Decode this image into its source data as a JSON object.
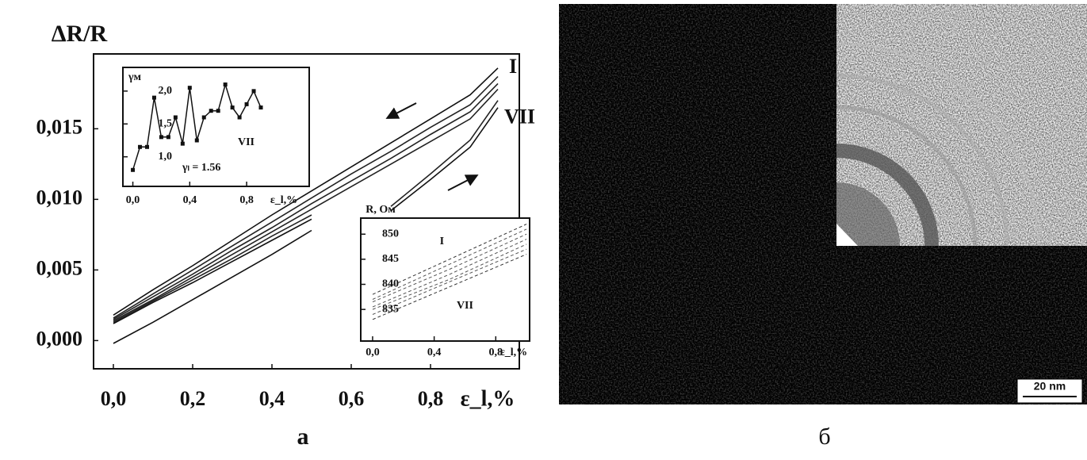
{
  "chart_data": [
    {
      "type": "line",
      "ylabel": "ΔR/R",
      "xlabel": "ε_l,%",
      "caption": "a",
      "x": [
        0,
        0.1,
        0.2,
        0.3,
        0.4,
        0.5,
        0.6,
        0.7,
        0.8,
        0.9,
        0.97
      ],
      "series": [
        {
          "name": "I",
          "color": "#111111",
          "values": [
            0.0018,
            0.0036,
            0.0053,
            0.0071,
            0.0089,
            0.0106,
            0.0123,
            0.014,
            0.0157,
            0.0174,
            0.0193
          ]
        },
        {
          "color": "#222222",
          "values": [
            0.0016,
            0.0033,
            0.005,
            0.0067,
            0.0084,
            0.0101,
            0.0118,
            0.0134,
            0.0151,
            0.0167,
            0.0187
          ]
        },
        {
          "color": "#222222",
          "values": [
            0.0015,
            0.0031,
            0.0047,
            0.0064,
            0.008,
            0.0097,
            0.0113,
            0.0129,
            0.0146,
            0.0162,
            0.0182
          ]
        },
        {
          "color": "#222222",
          "values": [
            0.0014,
            0.0029,
            0.0045,
            0.0061,
            0.0077,
            0.0093,
            0.0109,
            0.0125,
            0.0141,
            0.0157,
            0.0178
          ]
        },
        {
          "color": "#222222",
          "values": [
            0.0013,
            0.0028,
            0.0043,
            0.0058,
            0.0074,
            0.0089,
            null,
            0.0095,
            0.0118,
            0.0142,
            0.017
          ]
        },
        {
          "name": "VII",
          "color": "#111111",
          "values": [
            0.0012,
            0.0027,
            0.0041,
            0.0056,
            0.0071,
            0.0086,
            null,
            0.0092,
            0.0114,
            0.0137,
            0.0165
          ]
        },
        {
          "color": "#111111",
          "values": [
            -0.0002,
            0.0013,
            0.0029,
            0.0045,
            0.0061,
            0.0078,
            null,
            null,
            null,
            null,
            null
          ]
        }
      ],
      "xlim": [
        -0.05,
        1.024
      ],
      "ylim": [
        -0.002,
        0.0203
      ],
      "xticks": [
        {
          "value": 0,
          "label": "0,0"
        },
        {
          "value": 0.2,
          "label": "0,2"
        },
        {
          "value": 0.4,
          "label": "0,4"
        },
        {
          "value": 0.6,
          "label": "0,6"
        },
        {
          "value": 0.8,
          "label": "0,8"
        }
      ],
      "yticks": [
        {
          "value": 0,
          "label": "0,000"
        },
        {
          "value": 0.005,
          "label": "0,005"
        },
        {
          "value": 0.01,
          "label": "0,010"
        },
        {
          "value": 0.015,
          "label": "0,015"
        }
      ]
    },
    {
      "type": "line",
      "ylabel": "γм",
      "xlabel": "ε_l,%",
      "annotations": [
        "VII",
        "γₗ = 1.56"
      ],
      "x": [
        0,
        0.05,
        0.1,
        0.15,
        0.2,
        0.25,
        0.3,
        0.35,
        0.4,
        0.45,
        0.5,
        0.55,
        0.6,
        0.65,
        0.7,
        0.75,
        0.8,
        0.85,
        0.9
      ],
      "series": [
        {
          "color": "#111111",
          "values": [
            0.8,
            1.15,
            1.15,
            1.9,
            1.3,
            1.3,
            1.6,
            1.2,
            2.05,
            1.25,
            1.6,
            1.7,
            1.7,
            2.1,
            1.75,
            1.6,
            1.8,
            2.0,
            1.75
          ]
        }
      ],
      "xlim": [
        -0.07,
        1.24
      ],
      "ylim": [
        0.55,
        2.36
      ],
      "xticks": [
        {
          "value": 0,
          "label": "0,0"
        },
        {
          "value": 0.4,
          "label": "0,4"
        },
        {
          "value": 0.8,
          "label": "0,8"
        }
      ],
      "yticks": [
        {
          "value": 1,
          "label": "1,0"
        },
        {
          "value": 1.5,
          "label": "1,5"
        },
        {
          "value": 2,
          "label": "2,0"
        }
      ]
    },
    {
      "type": "line",
      "ylabel": "R, Ом",
      "xlabel": "ε_l,%",
      "dashed": true,
      "x": [
        0,
        0.5,
        1.0
      ],
      "series": [
        {
          "name": "I",
          "color": "#333333",
          "values": [
            838,
            845,
            852
          ]
        },
        {
          "color": "#555555",
          "values": [
            837,
            844,
            851
          ]
        },
        {
          "color": "#555555",
          "values": [
            836.5,
            843,
            850
          ]
        },
        {
          "color": "#555555",
          "values": [
            835.5,
            842,
            849
          ]
        },
        {
          "color": "#555555",
          "values": [
            835,
            841,
            848
          ]
        },
        {
          "color": "#555555",
          "values": [
            834,
            840.5,
            847
          ]
        },
        {
          "name": "VII",
          "color": "#333333",
          "values": [
            833,
            839.5,
            846
          ]
        }
      ],
      "xlim": [
        -0.077,
        1.02
      ],
      "ylim": [
        828.7,
        853.2
      ],
      "xticks": [
        {
          "value": 0,
          "label": "0,0"
        },
        {
          "value": 0.4,
          "label": "0,4"
        },
        {
          "value": 0.8,
          "label": "0,8"
        }
      ],
      "yticks": [
        835,
        840,
        845,
        850
      ]
    }
  ],
  "image": {
    "scale_bar": "20 nm",
    "caption": "б"
  }
}
